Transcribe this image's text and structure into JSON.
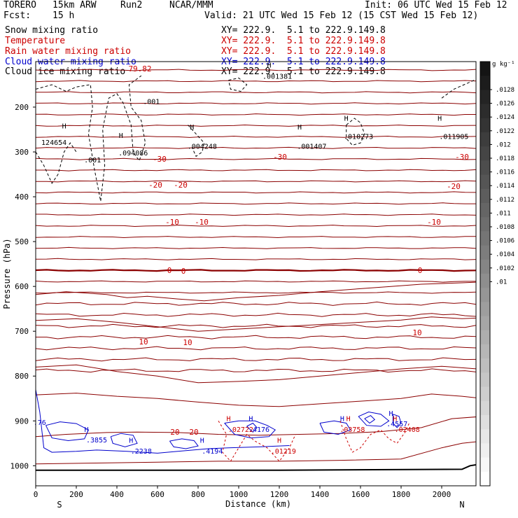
{
  "header": {
    "model": "TORERO",
    "resolution": "15km ARW",
    "run": "Run2",
    "org": "NCAR/MMM",
    "init": "Init: 06 UTC Wed 15 Feb 12",
    "fcst_label": "Fcst:",
    "fcst_value": "15 h",
    "valid": "Valid: 21 UTC Wed 15 Feb 12 (15 CST Wed 15 Feb 12)"
  },
  "legend": [
    {
      "name": "Snow mixing ratio",
      "xy": "XY= 222.9.  5.1 to 222.9.149.8",
      "color": "#000000"
    },
    {
      "name": "Temperature",
      "xy": "XY= 222.9.  5.1 to 222.9.149.8",
      "color": "#cc0000"
    },
    {
      "name": "Rain water mixing ratio",
      "xy": "XY= 222.9.  5.1 to 222.9.149.8",
      "color": "#cc0000"
    },
    {
      "name": "Cloud water mixing ratio",
      "xy": "XY= 222.9.  5.1 to 222.9.149.8",
      "color": "#0000cc"
    },
    {
      "name": "Cloud ice mixing ratio",
      "xy": "XY= 222.9.  5.1 to 222.9.149.8",
      "color": "#000000"
    }
  ],
  "chart_data": {
    "type": "cross-section contour",
    "xlabel": "Distance (km)",
    "ylabel": "Pressure (hPa)",
    "xlim": [
      0,
      2200
    ],
    "ylim": [
      1050,
      100
    ],
    "xticks": [
      0,
      200,
      400,
      600,
      800,
      1000,
      1200,
      1400,
      1600,
      1800,
      2000
    ],
    "yticks": [
      200,
      300,
      400,
      500,
      600,
      700,
      800,
      900,
      1000
    ],
    "endpoints": {
      "left": "S",
      "right": "N"
    },
    "temperature_isotherms_C": [
      {
        "value": -30,
        "p": 300
      },
      {
        "value": -20,
        "p": 378
      },
      {
        "value": -10,
        "p": 455
      },
      {
        "value": 0,
        "p": 569
      },
      {
        "value": 10,
        "p": 702
      },
      {
        "value": 20,
        "p": 925
      }
    ],
    "temperature_labels": [
      "-30",
      "-30",
      "-30",
      "-20",
      "-20",
      "-20",
      "-10",
      "-10",
      "-10",
      "0",
      "0",
      "0",
      "10",
      "10",
      "10",
      "20",
      "20",
      "79.82"
    ],
    "snow_labels": [
      {
        "text": ".001",
        "x": 570,
        "p": 188
      },
      {
        "text": ".001",
        "x": 280,
        "p": 319
      },
      {
        "text": ".001381",
        "x": 1190,
        "p": 132
      },
      {
        "text": "124654",
        "x": 90,
        "p": 280
      },
      {
        "text": ".094086",
        "x": 480,
        "p": 303
      },
      {
        "text": ".004248",
        "x": 820,
        "p": 288
      },
      {
        "text": ".001407",
        "x": 1360,
        "p": 288
      },
      {
        "text": ".010273",
        "x": 1590,
        "p": 266
      },
      {
        "text": ".011905",
        "x": 2060,
        "p": 266
      }
    ],
    "snow_maxima": [
      {
        "label": "H",
        "x": 1150,
        "p": 107
      },
      {
        "label": "H",
        "x": 140,
        "p": 243
      },
      {
        "label": "H",
        "x": 420,
        "p": 264
      },
      {
        "label": "H",
        "x": 770,
        "p": 245
      },
      {
        "label": "H",
        "x": 1300,
        "p": 245
      },
      {
        "label": "H",
        "x": 1530,
        "p": 226
      },
      {
        "label": "H",
        "x": 1990,
        "p": 226
      }
    ],
    "cloud_water_labels": [
      {
        "text": ".76",
        "x": 20,
        "p": 904
      },
      {
        "text": ".3855",
        "x": 300,
        "p": 943
      },
      {
        "text": ".2238",
        "x": 520,
        "p": 968
      },
      {
        "text": ".4194",
        "x": 870,
        "p": 968
      },
      {
        "text": ".4176",
        "x": 1100,
        "p": 920
      },
      {
        "text": ".4557",
        "x": 1780,
        "p": 907
      }
    ],
    "cloud_water_maxima": [
      {
        "label": "H",
        "x": 250,
        "p": 920
      },
      {
        "label": "H",
        "x": 470,
        "p": 944
      },
      {
        "label": "H",
        "x": 820,
        "p": 944
      },
      {
        "label": "H",
        "x": 1060,
        "p": 896
      },
      {
        "label": "H",
        "x": 1510,
        "p": 896
      },
      {
        "label": "H",
        "x": 1750,
        "p": 884
      }
    ],
    "rain_labels": [
      {
        "text": ".02722",
        "x": 1010,
        "p": 920
      },
      {
        "text": ".01219",
        "x": 1220,
        "p": 968
      },
      {
        "text": ".03758",
        "x": 1560,
        "p": 920
      },
      {
        "text": ".02408",
        "x": 1830,
        "p": 920
      }
    ],
    "rain_maxima": [
      {
        "label": "H",
        "x": 950,
        "p": 896
      },
      {
        "label": "H",
        "x": 1200,
        "p": 944
      },
      {
        "label": "H",
        "x": 1540,
        "p": 896
      },
      {
        "label": "H",
        "x": 1770,
        "p": 896
      }
    ],
    "colorbar": {
      "unit": "g kg⁻¹",
      "ticks": [
        ".0128",
        ".0126",
        ".0124",
        ".0122",
        ".012",
        ".0118",
        ".0116",
        ".0114",
        ".0112",
        ".011",
        ".0108",
        ".0106",
        ".0104",
        ".0102",
        ".01"
      ]
    }
  }
}
